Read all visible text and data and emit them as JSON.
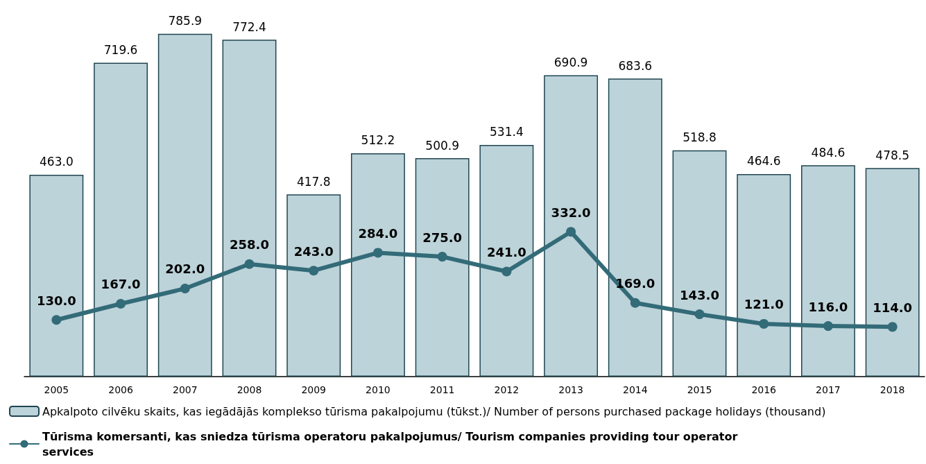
{
  "chart_data": {
    "type": "bar",
    "categories": [
      "2005",
      "2006",
      "2007",
      "2008",
      "2009",
      "2010",
      "2011",
      "2012",
      "2013",
      "2014",
      "2015",
      "2016",
      "2017",
      "2018"
    ],
    "series": [
      {
        "name": "Apkalpoto cilvēku skaits, kas iegādājās komplekso tūrisma pakalpojumu (tūkst.)/ Number of persons purchased package holidays (thousand)",
        "color": "#bcd3d9",
        "values": [
          463.0,
          719.6,
          785.9,
          772.4,
          417.8,
          512.2,
          500.9,
          531.4,
          690.9,
          683.6,
          518.8,
          464.6,
          484.6,
          478.5
        ],
        "value_labels": [
          "463.0",
          "719.6",
          "785.9",
          "772.4",
          "417.8",
          "512.2",
          "500.9",
          "531.4",
          "690.9",
          "683.6",
          "518.8",
          "464.6",
          "484.6",
          "478.5"
        ]
      },
      {
        "name": "Tūrisma komersanti, kas sniedza tūrisma operatoru pakalpojumus/ Tourism companies providing tour operator services",
        "type": "line",
        "color": "#336b78",
        "marker": "circle",
        "values": [
          130,
          167,
          202,
          258,
          243,
          284,
          275,
          241,
          332,
          169,
          143,
          121,
          116,
          114
        ],
        "value_labels": [
          "130.0",
          "167.0",
          "202.0",
          "258.0",
          "243.0",
          "284.0",
          "275.0",
          "241.0",
          "332.0",
          "169.0",
          "143.0",
          "121.0",
          "116.0",
          "114.0"
        ]
      }
    ],
    "grid": false,
    "legend": "bottom left"
  }
}
